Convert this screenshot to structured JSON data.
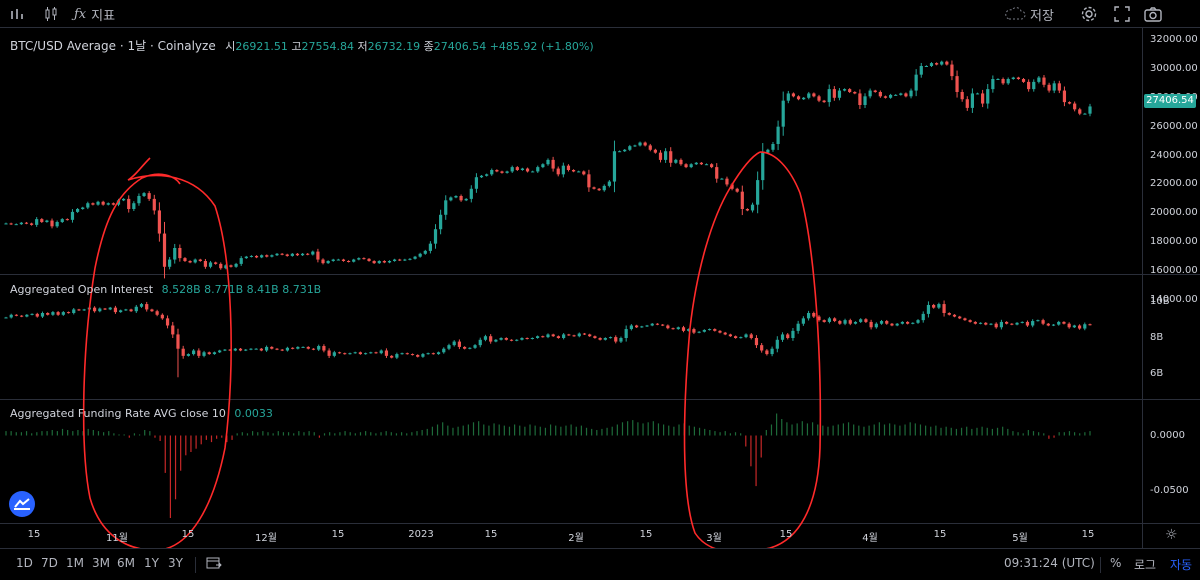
{
  "toolbar": {
    "interval_icon": "bar-chart-icon",
    "indicator_label": "지표",
    "save_label": "저장",
    "icons": [
      "cloud-icon",
      "chevron-down-icon",
      "gear-icon",
      "fullscreen-icon",
      "camera-icon"
    ]
  },
  "legend_main": {
    "title": "BTC/USD Average · 1날 · Coinalyze",
    "o_label": "시",
    "o": "26921.51",
    "h_label": "고",
    "h": "27554.84",
    "l_label": "저",
    "l": "26732.19",
    "c_label": "종",
    "c": "27406.54",
    "change": "+485.92 (+1.80%)"
  },
  "legend_oi": {
    "name": "Aggregated Open Interest",
    "values": "8.528B  8.771B  8.41B  8.731B"
  },
  "legend_fr": {
    "name": "Aggregated Funding Rate AVG close 10",
    "value": "0.0033"
  },
  "price_axis": [
    "32000.00",
    "30000.00",
    "28000.00",
    "26000.00",
    "24000.00",
    "22000.00",
    "20000.00",
    "18000.00",
    "16000.00",
    "14000.00"
  ],
  "oi_axis": [
    "10B",
    "8B",
    "6B"
  ],
  "fr_axis": [
    "0.0000",
    "-0.0500"
  ],
  "last_price": "27406.54",
  "time_axis": [
    "15",
    "11월",
    "15",
    "12월",
    "15",
    "2023",
    "15",
    "2월",
    "15",
    "3월",
    "15",
    "4월",
    "15",
    "5월",
    "15"
  ],
  "bottom": {
    "ranges": [
      "1D",
      "7D",
      "1M",
      "3M",
      "6M",
      "1Y",
      "3Y"
    ],
    "time": "09:31:24 (UTC)",
    "percent": "%",
    "log": "로그",
    "auto": "자동"
  },
  "colors": {
    "up": "#26a69a",
    "down": "#ef5350",
    "annotation": "#ff2a2a"
  },
  "chart_data": [
    {
      "type": "candlestick",
      "title": "BTC/USD Average · 1날 · Coinalyze",
      "ylim": [
        14000,
        32000
      ],
      "x_ticks": [
        "15",
        "11월",
        "15",
        "12월",
        "15",
        "2023",
        "15",
        "2월",
        "15",
        "3월",
        "15",
        "4월",
        "15",
        "5월",
        "15"
      ],
      "series": [
        {
          "name": "BTC/USD Average",
          "close": [
            19300,
            19250,
            19250,
            19350,
            19300,
            19200,
            19600,
            19400,
            19500,
            19100,
            19400,
            19600,
            19550,
            20100,
            20300,
            20400,
            20700,
            20600,
            20800,
            20600,
            20700,
            20600,
            20900,
            21000,
            20300,
            20700,
            21200,
            21400,
            21000,
            20200,
            18600,
            16300,
            16800,
            17600,
            16900,
            16700,
            16600,
            16800,
            16700,
            16300,
            16600,
            16500,
            16200,
            16400,
            16300,
            16500,
            16900,
            17000,
            17050,
            16950,
            17100,
            17000,
            17100,
            17200,
            17150,
            17050,
            17200,
            17100,
            17200,
            17150,
            17350,
            16800,
            16550,
            16700,
            16800,
            16800,
            16700,
            16650,
            16800,
            16900,
            16850,
            16700,
            16550,
            16700,
            16600,
            16700,
            16800,
            16750,
            16800,
            16850,
            17000,
            17200,
            17400,
            17900,
            18900,
            19900,
            20900,
            21100,
            21200,
            20900,
            21000,
            21700,
            22500,
            22600,
            22700,
            23000,
            22900,
            22800,
            22900,
            23200,
            23000,
            23100,
            22900,
            22900,
            23200,
            23400,
            23700,
            23100,
            22700,
            23300,
            23000,
            22900,
            22900,
            22700,
            21800,
            21700,
            21600,
            21900,
            22200,
            24300,
            24300,
            24400,
            24650,
            24700,
            24900,
            24700,
            24400,
            24200,
            23700,
            24300,
            23500,
            23700,
            23400,
            23200,
            23400,
            23500,
            23400,
            23400,
            23200,
            22400,
            22400,
            22000,
            21700,
            21500,
            20300,
            20200,
            20600,
            22300,
            24200,
            24400,
            24800,
            26000,
            27800,
            28300,
            28100,
            27900,
            28000,
            28300,
            28100,
            27800,
            27700,
            28600,
            28000,
            28500,
            28600,
            28400,
            28300,
            27500,
            28100,
            28500,
            28400,
            28100,
            28000,
            28200,
            28200,
            28300,
            28100,
            28500,
            29600,
            30200,
            30200,
            30400,
            30300,
            30500,
            30300,
            29500,
            28400,
            27900,
            27300,
            28300,
            28300,
            27600,
            28600,
            29300,
            29300,
            29000,
            29300,
            29400,
            29300,
            29100,
            28600,
            29100,
            29400,
            28900,
            28500,
            29000,
            28500,
            27700,
            27600,
            27200,
            26900,
            26900,
            27400
          ]
        }
      ]
    },
    {
      "type": "candlestick",
      "title": "Aggregated Open Interest",
      "values_shown": [
        "8.528B",
        "8.771B",
        "8.41B",
        "8.731B"
      ],
      "ylim": [
        5200000000,
        10800000000
      ],
      "series": [
        {
          "name": "Aggregated Open Interest",
          "close": [
            9.15,
            9.3,
            9.25,
            9.2,
            9.3,
            9.35,
            9.2,
            9.4,
            9.3,
            9.45,
            9.3,
            9.45,
            9.4,
            9.6,
            9.55,
            9.6,
            9.7,
            9.5,
            9.65,
            9.6,
            9.7,
            9.45,
            9.55,
            9.6,
            9.5,
            9.75,
            9.9,
            9.6,
            9.5,
            9.3,
            9.1,
            8.7,
            8.2,
            7.4,
            7.0,
            7.1,
            7.3,
            7.0,
            7.2,
            7.1,
            7.2,
            7.3,
            7.35,
            7.3,
            7.4,
            7.3,
            7.35,
            7.4,
            7.4,
            7.3,
            7.5,
            7.4,
            7.35,
            7.3,
            7.45,
            7.4,
            7.5,
            7.5,
            7.4,
            7.35,
            7.55,
            7.3,
            7.0,
            7.2,
            7.15,
            7.1,
            7.15,
            7.2,
            7.1,
            7.15,
            7.2,
            7.15,
            7.3,
            7.0,
            6.9,
            7.1,
            7.15,
            7.1,
            7.05,
            6.95,
            7.1,
            7.15,
            7.1,
            7.2,
            7.4,
            7.6,
            7.8,
            7.5,
            7.4,
            7.45,
            7.6,
            7.9,
            8.1,
            7.8,
            7.9,
            8.0,
            7.9,
            7.85,
            7.9,
            8.0,
            7.95,
            8.0,
            8.1,
            8.05,
            8.2,
            8.1,
            8.0,
            8.2,
            8.15,
            8.1,
            8.25,
            8.2,
            8.1,
            8.0,
            7.9,
            8.0,
            8.05,
            7.8,
            8.0,
            8.5,
            8.7,
            8.6,
            8.65,
            8.7,
            8.8,
            8.75,
            8.7,
            8.55,
            8.5,
            8.6,
            8.4,
            8.5,
            8.3,
            8.35,
            8.45,
            8.5,
            8.4,
            8.3,
            8.2,
            8.1,
            8.0,
            8.05,
            8.2,
            8.0,
            7.6,
            7.3,
            7.1,
            7.4,
            7.9,
            8.2,
            8.0,
            8.4,
            8.8,
            9.1,
            9.4,
            9.2,
            9.0,
            8.9,
            9.1,
            8.95,
            8.8,
            9.0,
            8.8,
            8.9,
            9.05,
            8.9,
            8.6,
            8.8,
            8.95,
            8.8,
            8.7,
            8.8,
            8.9,
            8.8,
            8.85,
            9.0,
            9.35,
            9.85,
            9.7,
            9.9,
            9.4,
            9.3,
            9.2,
            9.1,
            9.0,
            8.9,
            8.8,
            8.85,
            8.75,
            8.8,
            8.6,
            8.9,
            8.8,
            8.75,
            8.85,
            8.9,
            8.7,
            8.95,
            9.0,
            8.8,
            8.7,
            8.75,
            8.9,
            8.8,
            8.6,
            8.7,
            8.53,
            8.77,
            8.73
          ]
        }
      ]
    },
    {
      "type": "bar",
      "title": "Aggregated Funding Rate AVG close 10",
      "values_shown": [
        "0.0033"
      ],
      "ylim": [
        -0.075,
        0.025
      ],
      "series": [
        {
          "name": "Aggregated Funding Rate AVG close 10",
          "values": [
            0.004,
            0.004,
            0.003,
            0.003,
            0.004,
            0.002,
            0.003,
            0.004,
            0.004,
            0.005,
            0.004,
            0.006,
            0.005,
            0.004,
            0.005,
            0.004,
            0.006,
            0.005,
            0.004,
            0.003,
            0.004,
            0.002,
            0.001,
            0.001,
            -0.002,
            0.002,
            0.001,
            0.005,
            0.004,
            -0.002,
            -0.005,
            -0.034,
            -0.075,
            -0.058,
            -0.032,
            -0.018,
            -0.015,
            -0.012,
            -0.008,
            -0.004,
            -0.006,
            -0.003,
            -0.002,
            -0.006,
            -0.004,
            0.002,
            0.003,
            0.002,
            0.004,
            0.003,
            0.004,
            0.003,
            0.002,
            0.004,
            0.003,
            0.003,
            0.002,
            0.004,
            0.003,
            0.004,
            0.003,
            -0.002,
            0.002,
            0.003,
            0.002,
            0.003,
            0.004,
            0.003,
            0.002,
            0.003,
            0.004,
            0.003,
            0.002,
            0.003,
            0.004,
            0.003,
            0.002,
            0.003,
            0.002,
            0.003,
            0.004,
            0.005,
            0.006,
            0.008,
            0.01,
            0.012,
            0.009,
            0.007,
            0.008,
            0.009,
            0.01,
            0.012,
            0.013,
            0.01,
            0.009,
            0.011,
            0.01,
            0.009,
            0.008,
            0.01,
            0.009,
            0.008,
            0.01,
            0.009,
            0.008,
            0.007,
            0.01,
            0.009,
            0.008,
            0.009,
            0.01,
            0.008,
            0.009,
            0.007,
            0.006,
            0.005,
            0.006,
            0.007,
            0.008,
            0.01,
            0.012,
            0.013,
            0.014,
            0.012,
            0.011,
            0.012,
            0.013,
            0.011,
            0.01,
            0.009,
            0.008,
            0.01,
            0.011,
            0.009,
            0.008,
            0.007,
            0.006,
            0.005,
            0.004,
            0.003,
            0.004,
            0.002,
            0.003,
            0.002,
            -0.01,
            -0.028,
            -0.046,
            -0.02,
            0.005,
            0.01,
            0.02,
            0.015,
            0.012,
            0.01,
            0.011,
            0.013,
            0.011,
            0.012,
            0.01,
            0.009,
            0.008,
            0.009,
            0.01,
            0.011,
            0.012,
            0.01,
            0.009,
            0.008,
            0.009,
            0.01,
            0.012,
            0.01,
            0.011,
            0.01,
            0.009,
            0.01,
            0.012,
            0.011,
            0.01,
            0.009,
            0.008,
            0.009,
            0.007,
            0.008,
            0.007,
            0.006,
            0.007,
            0.008,
            0.006,
            0.007,
            0.008,
            0.007,
            0.006,
            0.007,
            0.008,
            0.006,
            0.004,
            0.003,
            0.002,
            0.005,
            0.004,
            0.003,
            0.002,
            -0.003,
            -0.002,
            0.003,
            0.003,
            0.004,
            0.003,
            0.002,
            0.003,
            0.004
          ]
        }
      ]
    }
  ]
}
